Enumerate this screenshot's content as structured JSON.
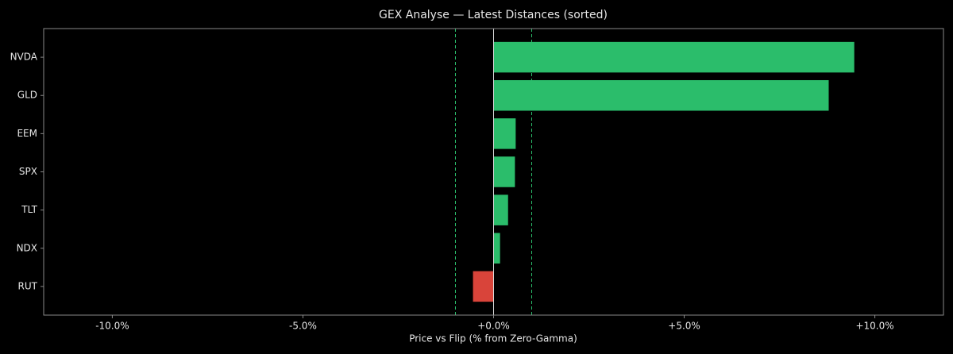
{
  "chart_data": {
    "type": "hbar",
    "title": "GEX Analyse — Latest Distances (sorted)",
    "x_label": "Price vs Flip (% from Zero-Gamma)",
    "categories": [
      "NVDA",
      "GLD",
      "EEM",
      "SPX",
      "TLT",
      "NDX",
      "RUT"
    ],
    "values": [
      9.46,
      8.79,
      0.58,
      0.56,
      0.38,
      0.17,
      -0.54
    ],
    "positive_color": "#2bbd6b",
    "negative_color": "#d9443a",
    "thresholds": [
      -1.0,
      1.0
    ],
    "threshold_color": "#2bbd6b",
    "xlim": [
      -11.8,
      11.8
    ],
    "xticks": [
      {
        "value": -10,
        "label": "-10.0%"
      },
      {
        "value": -5,
        "label": "-5.0%"
      },
      {
        "value": 0,
        "label": "+0.0%"
      },
      {
        "value": 5,
        "label": "+5.0%"
      },
      {
        "value": 10,
        "label": "+10.0%"
      }
    ]
  }
}
